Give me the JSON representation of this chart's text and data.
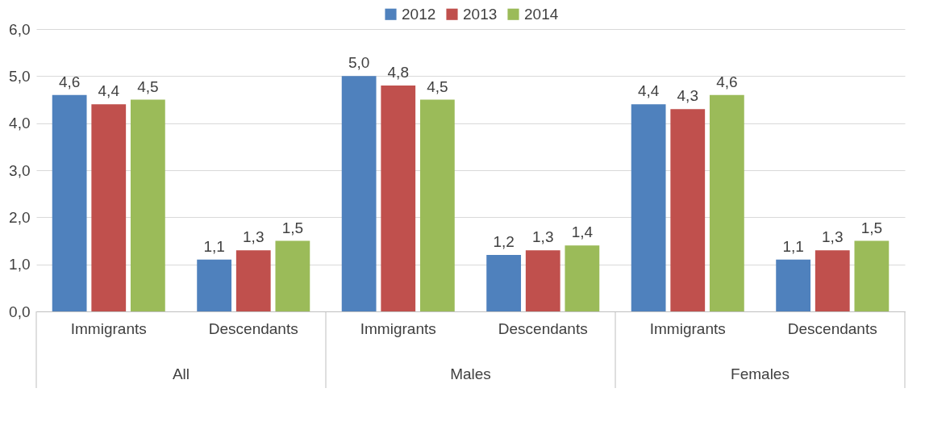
{
  "chart_data": {
    "type": "bar",
    "categories": [
      "Immigrants",
      "Descendants",
      "Immigrants",
      "Descendants",
      "Immigrants",
      "Descendants"
    ],
    "annotations": [
      "All",
      "Males",
      "Females"
    ],
    "series": [
      {
        "name": "2012",
        "color": "#4f81bd",
        "values": [
          4.6,
          1.1,
          5.0,
          1.2,
          4.4,
          1.1
        ],
        "value_labels": [
          "4,6",
          "1,1",
          "5,0",
          "1,2",
          "4,4",
          "1,1"
        ]
      },
      {
        "name": "2013",
        "color": "#c0504d",
        "values": [
          4.4,
          1.3,
          4.8,
          1.3,
          4.3,
          1.3
        ],
        "value_labels": [
          "4,4",
          "1,3",
          "4,8",
          "1,3",
          "4,3",
          "1,3"
        ]
      },
      {
        "name": "2014",
        "color": "#9bbb59",
        "values": [
          4.5,
          1.5,
          4.5,
          1.4,
          4.6,
          1.5
        ],
        "value_labels": [
          "4,5",
          "1,5",
          "4,5",
          "1,4",
          "4,6",
          "1,5"
        ]
      }
    ],
    "ylim": [
      0,
      6
    ],
    "yticks": [
      {
        "value": 0,
        "label": "0,0"
      },
      {
        "value": 1,
        "label": "1,0"
      },
      {
        "value": 2,
        "label": "2,0"
      },
      {
        "value": 3,
        "label": "3,0"
      },
      {
        "value": 4,
        "label": "4,0"
      },
      {
        "value": 5,
        "label": "5,0"
      },
      {
        "value": 6,
        "label": "6,0"
      }
    ],
    "grid": "y",
    "legend": "top"
  }
}
